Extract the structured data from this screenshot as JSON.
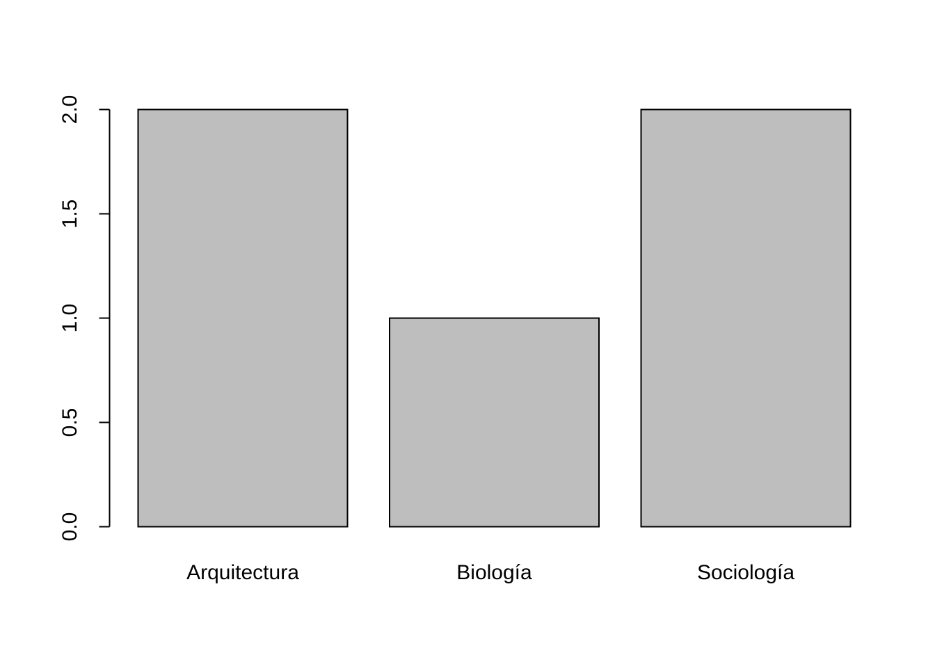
{
  "chart_data": {
    "type": "bar",
    "title": "",
    "xlabel": "",
    "ylabel": "",
    "categories": [
      "Arquitectura",
      "Biología",
      "Sociología"
    ],
    "values": [
      2,
      1,
      2
    ],
    "ylim": [
      0,
      2
    ],
    "y_ticks": [
      0,
      0.5,
      1,
      1.5,
      2
    ],
    "y_tick_labels": [
      "0.0",
      "0.5",
      "1.0",
      "1.5",
      "2.0"
    ],
    "grid": false,
    "legend": "none",
    "bar_fill": "#bebebe",
    "bar_stroke": "#000000"
  }
}
